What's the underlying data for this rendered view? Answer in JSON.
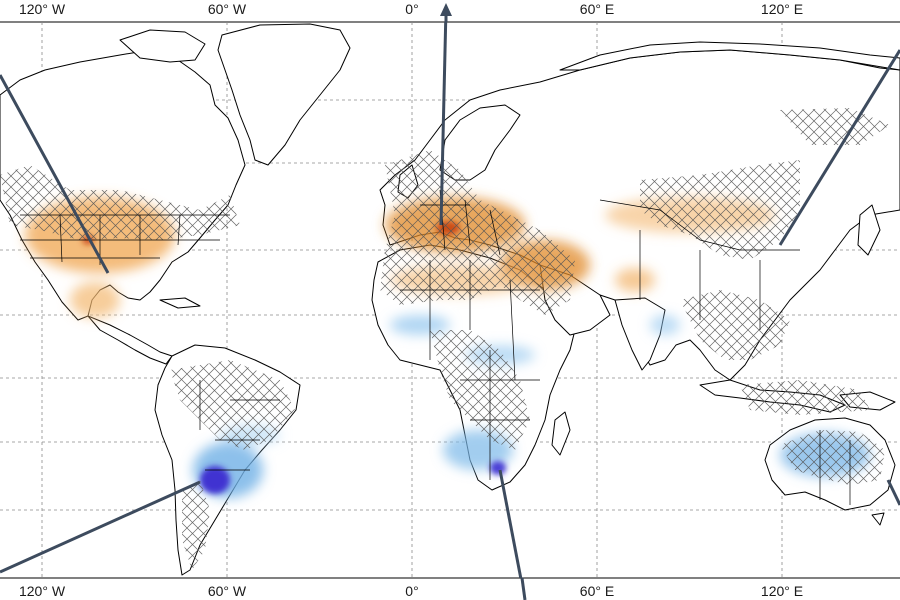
{
  "map": {
    "lon_labels_top": [
      "120° W",
      "60° W",
      "0°",
      "60° E",
      "120° E"
    ],
    "lon_labels_bottom": [
      "120° W",
      "60° W",
      "0°",
      "60° E",
      "120° E"
    ],
    "colors": {
      "drying": "#e07a10",
      "drying_light": "#f3b870",
      "drying_strong": "#c9420a",
      "wetting": "#4aa3df",
      "wetting_light": "#b8dcf5",
      "wetting_strong": "#3b2bd0",
      "hatch": "#555555",
      "pointer": "#3d4b5e",
      "coast": "#000000"
    },
    "patches": [
      {
        "name": "western-us",
        "tone": "drying"
      },
      {
        "name": "central-america",
        "tone": "drying_light"
      },
      {
        "name": "europe",
        "tone": "drying"
      },
      {
        "name": "central-europe-hotspot",
        "tone": "drying_strong"
      },
      {
        "name": "middle-east",
        "tone": "drying"
      },
      {
        "name": "north-africa",
        "tone": "drying_light"
      },
      {
        "name": "central-asia",
        "tone": "drying_light"
      },
      {
        "name": "east-asia",
        "tone": "drying_light"
      },
      {
        "name": "sahel",
        "tone": "wetting_light"
      },
      {
        "name": "southern-africa",
        "tone": "wetting"
      },
      {
        "name": "south-america",
        "tone": "wetting"
      },
      {
        "name": "argentina-hotspot",
        "tone": "wetting_strong"
      },
      {
        "name": "australia",
        "tone": "wetting"
      }
    ]
  }
}
